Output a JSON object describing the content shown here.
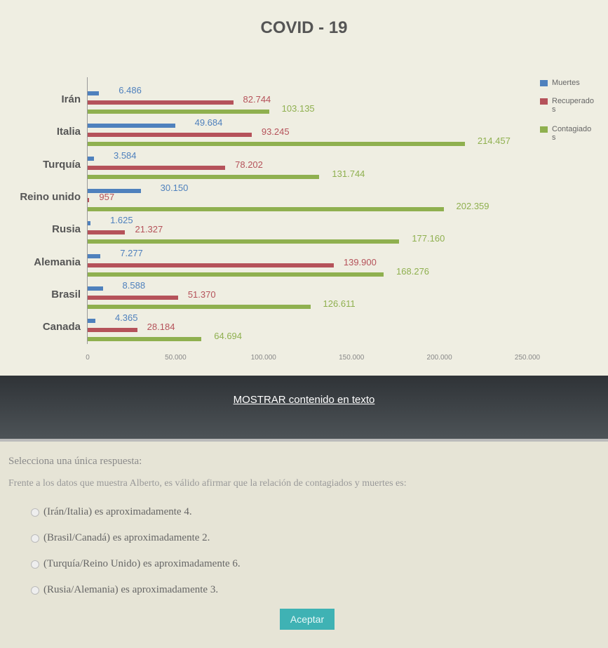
{
  "chart_data": {
    "type": "bar",
    "orientation": "horizontal",
    "title": "COVID - 19",
    "categories": [
      "Irán",
      "Italia",
      "Turquía",
      "Reino unido",
      "Rusia",
      "Alemania",
      "Brasil",
      "Canada"
    ],
    "series": [
      {
        "name": "Muertes",
        "color": "#4f81bd",
        "values": [
          6486,
          49684,
          3584,
          30150,
          1625,
          7277,
          8588,
          4365
        ],
        "labels": [
          "6.486",
          "49.684",
          "3.584",
          "30.150",
          "1.625",
          "7.277",
          "8.588",
          "4.365"
        ]
      },
      {
        "name": "Recuperados",
        "color": "#b5525a",
        "values": [
          82744,
          93245,
          78202,
          957,
          21327,
          139900,
          51370,
          28184
        ],
        "labels": [
          "82.744",
          "93.245",
          "78.202",
          "957",
          "21.327",
          "139.900",
          "51.370",
          "28.184"
        ]
      },
      {
        "name": "Contagiados",
        "color": "#8fb04f",
        "values": [
          103135,
          214457,
          131744,
          202359,
          177160,
          168276,
          126611,
          64694
        ],
        "labels": [
          "103.135",
          "214.457",
          "131.744",
          "202.359",
          "177.160",
          "168.276",
          "126.611",
          "64.694"
        ]
      }
    ],
    "xlim": [
      0,
      250000
    ],
    "xticks": [
      "0",
      "50.000",
      "100.000",
      "150.000",
      "200.000",
      "250.000"
    ],
    "legend": "right",
    "grid": false
  },
  "show_text_link": "MOSTRAR contenido en texto",
  "quiz": {
    "heading": "Selecciona una única respuesta:",
    "question": "Frente a los datos que muestra Alberto, es válido afirmar que la relación de contagiados y muertes es:",
    "options": [
      "(Irán/Italia) es aproximadamente 4.",
      "(Brasil/Canadá) es aproximadamente 2.",
      "(Turquía/Reino Unido) es aproximadamente 6.",
      "(Rusia/Alemania) es aproximadamente 3."
    ],
    "accept": "Aceptar"
  }
}
